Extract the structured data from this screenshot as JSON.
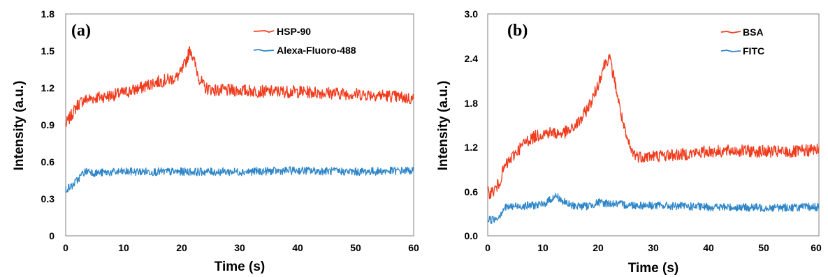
{
  "chart_data": [
    {
      "type": "line",
      "panel_label": "(a)",
      "xlabel": "Time (s)",
      "ylabel": "Intensity (a.u.)",
      "xlim": [
        0,
        60
      ],
      "ylim": [
        0,
        1.8
      ],
      "x_ticks": [
        "0",
        "10",
        "20",
        "30",
        "40",
        "50",
        "60"
      ],
      "y_ticks": [
        "0",
        "0.3",
        "0.6",
        "0.9",
        "1.2",
        "1.5",
        "1.8"
      ],
      "grid": false,
      "legend_position": "top-right",
      "series": [
        {
          "name": "HSP-90",
          "color": "#f03c1e",
          "x": [
            0,
            1,
            2,
            3,
            5,
            8,
            10,
            13,
            15,
            17,
            19,
            20,
            21,
            21.5,
            22,
            23,
            24,
            26,
            28,
            30,
            35,
            40,
            45,
            50,
            55,
            60
          ],
          "y": [
            0.9,
            0.98,
            1.06,
            1.1,
            1.12,
            1.14,
            1.16,
            1.2,
            1.24,
            1.26,
            1.28,
            1.33,
            1.45,
            1.52,
            1.44,
            1.28,
            1.2,
            1.18,
            1.18,
            1.18,
            1.17,
            1.17,
            1.16,
            1.15,
            1.14,
            1.11
          ]
        },
        {
          "name": "Alexa-Fluoro-488",
          "color": "#2e86c8",
          "x": [
            0,
            1,
            2,
            3,
            4,
            5,
            10,
            20,
            30,
            40,
            50,
            60
          ],
          "y": [
            0.38,
            0.4,
            0.45,
            0.51,
            0.53,
            0.51,
            0.52,
            0.52,
            0.52,
            0.53,
            0.52,
            0.53
          ]
        }
      ]
    },
    {
      "type": "line",
      "panel_label": "(b)",
      "xlabel": "Time (s)",
      "ylabel": "Intensity (a.u.)",
      "xlim": [
        0,
        60
      ],
      "ylim": [
        0,
        3.0
      ],
      "x_ticks": [
        "0",
        "10",
        "20",
        "30",
        "40",
        "50",
        "60"
      ],
      "y_ticks": [
        "0.0",
        "0.6",
        "1.2",
        "1.8",
        "2.4",
        "3.0"
      ],
      "grid": false,
      "legend_position": "top-right",
      "series": [
        {
          "name": "BSA",
          "color": "#f03c1e",
          "x": [
            0,
            1,
            2,
            3,
            5,
            7,
            9,
            11,
            13,
            15,
            17,
            19,
            20,
            21,
            22,
            23,
            24,
            25,
            26,
            27,
            28,
            30,
            35,
            40,
            45,
            50,
            55,
            60
          ],
          "y": [
            0.58,
            0.6,
            0.7,
            0.92,
            1.12,
            1.28,
            1.36,
            1.4,
            1.38,
            1.42,
            1.58,
            1.85,
            2.05,
            2.3,
            2.42,
            2.1,
            1.7,
            1.35,
            1.15,
            1.08,
            1.07,
            1.08,
            1.1,
            1.14,
            1.15,
            1.14,
            1.13,
            1.17
          ]
        },
        {
          "name": "FITC",
          "color": "#2e86c8",
          "x": [
            0,
            1,
            2,
            3,
            5,
            10,
            11.5,
            12.5,
            13.5,
            15,
            18,
            20,
            25,
            30,
            40,
            50,
            60
          ],
          "y": [
            0.22,
            0.22,
            0.26,
            0.38,
            0.4,
            0.42,
            0.5,
            0.54,
            0.47,
            0.41,
            0.4,
            0.45,
            0.42,
            0.41,
            0.39,
            0.38,
            0.39
          ]
        }
      ]
    }
  ]
}
